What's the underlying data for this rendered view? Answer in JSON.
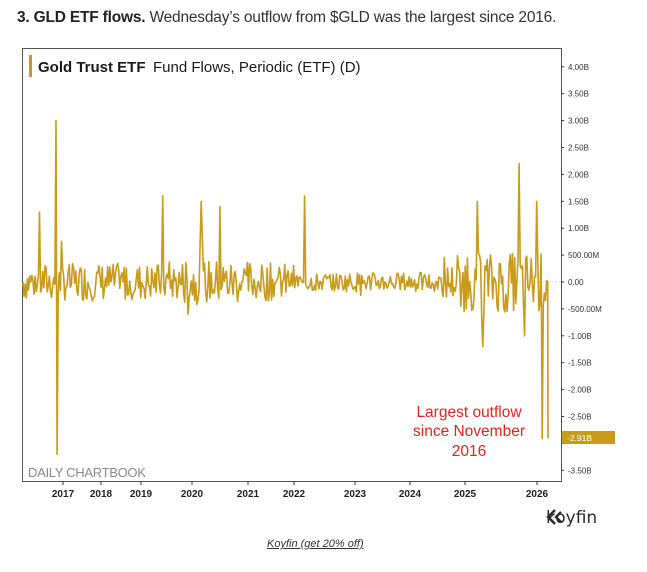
{
  "headline": {
    "bold": "3. GLD ETF flows.",
    "text": " Wednesday’s outflow from $GLD was the largest since 2016."
  },
  "colors": {
    "series": "#c89b1a",
    "annotation": "#e8231f",
    "axis": "#444444",
    "watermark": "#8a8a8a",
    "label_bg": "#c89b1a"
  },
  "chart_data": {
    "type": "bar",
    "title_bold": "Gold Trust ETF",
    "title": "Fund Flows, Periodic (ETF) (D)",
    "xlabel": "",
    "ylabel": "",
    "ylim": [
      -3.7,
      4.3
    ],
    "grid": false,
    "y_ticks": [
      {
        "value": 4.0,
        "label": "4.00B"
      },
      {
        "value": 3.5,
        "label": "3.50B"
      },
      {
        "value": 3.0,
        "label": "3.00B"
      },
      {
        "value": 2.5,
        "label": "2.50B"
      },
      {
        "value": 2.0,
        "label": "2.00B"
      },
      {
        "value": 1.5,
        "label": "1.50B"
      },
      {
        "value": 1.0,
        "label": "1.00B"
      },
      {
        "value": 0.5,
        "label": "500.00M"
      },
      {
        "value": 0.0,
        "label": "0.00"
      },
      {
        "value": -0.5,
        "label": "-500.00M"
      },
      {
        "value": -1.0,
        "label": "-1.00B"
      },
      {
        "value": -1.5,
        "label": "-1.50B"
      },
      {
        "value": -2.0,
        "label": "-2.00B"
      },
      {
        "value": -2.5,
        "label": "-2.50B"
      },
      {
        "value": -3.5,
        "label": "-3.50B"
      }
    ],
    "x_ticks": [
      "2017",
      "2018",
      "2019",
      "2020",
      "2021",
      "2022",
      "2023",
      "2024",
      "2025",
      "2026"
    ],
    "last_value_label": "-2.91B",
    "last_value": -2.91,
    "annotation_lines": [
      "Largest outflow",
      "since November",
      "2016"
    ],
    "watermark": "DAILY CHARTBOOK",
    "units": "USD billions",
    "spikes": [
      {
        "date": "2016-06",
        "value": 1.3
      },
      {
        "date": "2016-11",
        "value": 3.0
      },
      {
        "date": "2016-11",
        "value": -3.2
      },
      {
        "date": "2019-06",
        "value": 1.6
      },
      {
        "date": "2019-12",
        "value": -0.6
      },
      {
        "date": "2020-03",
        "value": 1.5
      },
      {
        "date": "2020-07",
        "value": 1.4
      },
      {
        "date": "2022-03",
        "value": 1.6
      },
      {
        "date": "2025-03",
        "value": 1.5
      },
      {
        "date": "2025-04",
        "value": -1.2
      },
      {
        "date": "2025-10",
        "value": 2.2
      },
      {
        "date": "2025-11",
        "value": -1.0
      },
      {
        "date": "2026-01",
        "value": 1.5
      },
      {
        "date": "2026-02",
        "value": -2.91
      }
    ]
  },
  "footer": {
    "brand": "koyfin",
    "link": "Koyfin (get 20% off)"
  }
}
